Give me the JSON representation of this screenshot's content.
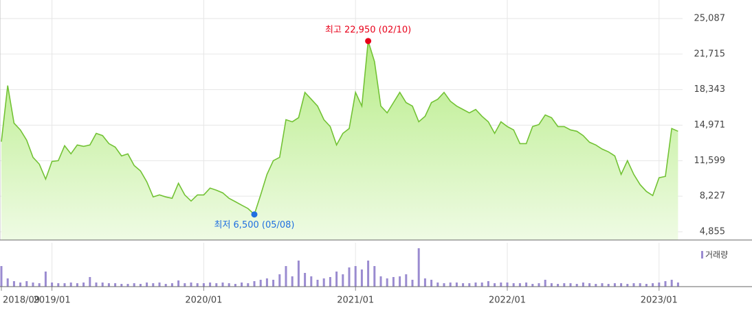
{
  "chart_data": [
    {
      "type": "area",
      "color": "#72c234",
      "fill_top": "#b6ec86",
      "fill_bottom": "#effbe4",
      "categories": [
        "2018/09",
        null,
        null,
        null,
        null,
        null,
        null,
        null,
        "2019/01",
        null,
        null,
        null,
        null,
        null,
        null,
        null,
        null,
        null,
        null,
        null,
        null,
        null,
        null,
        null,
        null,
        null,
        null,
        null,
        null,
        null,
        null,
        null,
        "2020/01",
        null,
        null,
        null,
        null,
        null,
        null,
        null,
        null,
        null,
        null,
        null,
        null,
        null,
        null,
        null,
        null,
        null,
        null,
        null,
        null,
        null,
        null,
        null,
        "2021/01",
        null,
        null,
        null,
        null,
        null,
        null,
        null,
        null,
        null,
        null,
        null,
        null,
        null,
        null,
        null,
        null,
        null,
        null,
        null,
        null,
        null,
        null,
        null,
        "2022/01",
        null,
        null,
        null,
        null,
        null,
        null,
        null,
        null,
        null,
        null,
        null,
        null,
        null,
        null,
        null,
        null,
        null,
        null,
        null,
        null,
        null,
        null,
        null,
        "2023/01",
        null,
        null,
        null
      ],
      "values": [
        13400,
        18730,
        15160,
        14520,
        13540,
        11920,
        11270,
        9850,
        11530,
        11600,
        13020,
        12250,
        13090,
        12960,
        13090,
        14190,
        13980,
        13220,
        12890,
        12050,
        12250,
        11140,
        10630,
        9590,
        8160,
        8350,
        8160,
        8030,
        9460,
        8350,
        7770,
        8350,
        8350,
        9000,
        8800,
        8550,
        8030,
        7710,
        7380,
        7060,
        6500,
        8350,
        10300,
        11600,
        11920,
        15490,
        15290,
        15680,
        18080,
        17430,
        16780,
        15490,
        14840,
        13090,
        14190,
        14650,
        18080,
        16780,
        22950,
        21000,
        16780,
        16140,
        17110,
        18080,
        17110,
        16780,
        15290,
        15810,
        17110,
        17430,
        18080,
        17240,
        16780,
        16460,
        16140,
        16460,
        15810,
        15290,
        14190,
        15290,
        14840,
        14520,
        13220,
        13220,
        14840,
        15030,
        15940,
        15680,
        14840,
        14840,
        14520,
        14390,
        13980,
        13350,
        13090,
        12700,
        12440,
        12050,
        10300,
        11600,
        10300,
        9330,
        8680,
        8290,
        9980,
        10110,
        14650,
        14390
      ],
      "ylim": [
        4855,
        25087
      ],
      "yticks": [
        {
          "value": 25087,
          "label": "25,087"
        },
        {
          "value": 21715,
          "label": "21,715"
        },
        {
          "value": 18343,
          "label": "18,343"
        },
        {
          "value": 14971,
          "label": "14,971"
        },
        {
          "value": 11599,
          "label": "11,599"
        },
        {
          "value": 8227,
          "label": "8,227"
        },
        {
          "value": 4855,
          "label": "4,855"
        }
      ],
      "grid": true,
      "annotations": [
        {
          "text": "최고 22,950 (02/10)",
          "value": 22950,
          "color": "#e8001a"
        },
        {
          "text": "최저 6,500 (05/08)",
          "value": 6500,
          "color": "#1f6fe0"
        }
      ]
    },
    {
      "type": "bar",
      "ylim": [
        0,
        60
      ],
      "series": [
        {
          "name": "거래량",
          "color": "#9a8bd0",
          "values": [
            30,
            12,
            8,
            6,
            8,
            6,
            5,
            22,
            6,
            5,
            5,
            6,
            5,
            6,
            14,
            6,
            6,
            5,
            5,
            4,
            4,
            5,
            4,
            6,
            5,
            6,
            4,
            5,
            9,
            5,
            6,
            5,
            5,
            6,
            5,
            6,
            5,
            4,
            6,
            5,
            8,
            10,
            12,
            10,
            18,
            30,
            15,
            38,
            20,
            15,
            10,
            12,
            14,
            22,
            18,
            28,
            30,
            25,
            38,
            30,
            15,
            12,
            14,
            15,
            18,
            10,
            56,
            12,
            10,
            6,
            5,
            6,
            6,
            5,
            5,
            6,
            6,
            8,
            5,
            6,
            6,
            5,
            5,
            6,
            4,
            5,
            10,
            5,
            4,
            5,
            5,
            4,
            6,
            5,
            4,
            5,
            4,
            5,
            5,
            4,
            5,
            5,
            4,
            5,
            6,
            8,
            10,
            6
          ]
        }
      ]
    }
  ]
}
